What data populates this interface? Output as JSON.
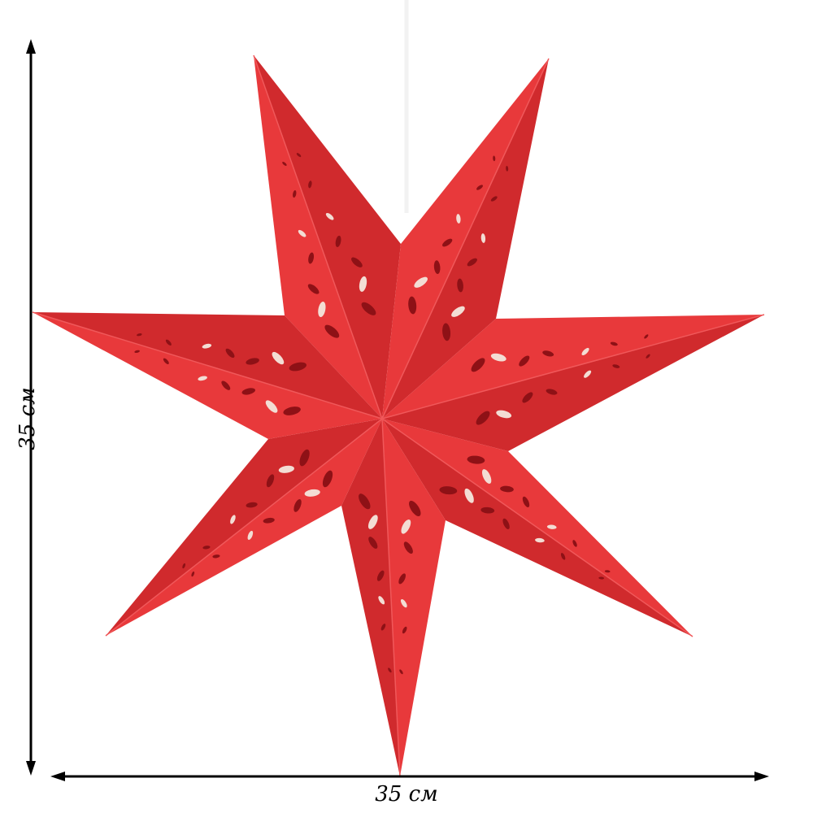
{
  "dimensions": {
    "height_label": "35 см",
    "width_label": "35 см"
  },
  "colors": {
    "star_light": "#e8393b",
    "star_dark": "#d02a2d",
    "cutout_dark": "#8e1116",
    "cutout_light": "#f3ddd4",
    "string": "#f4f4f4"
  }
}
